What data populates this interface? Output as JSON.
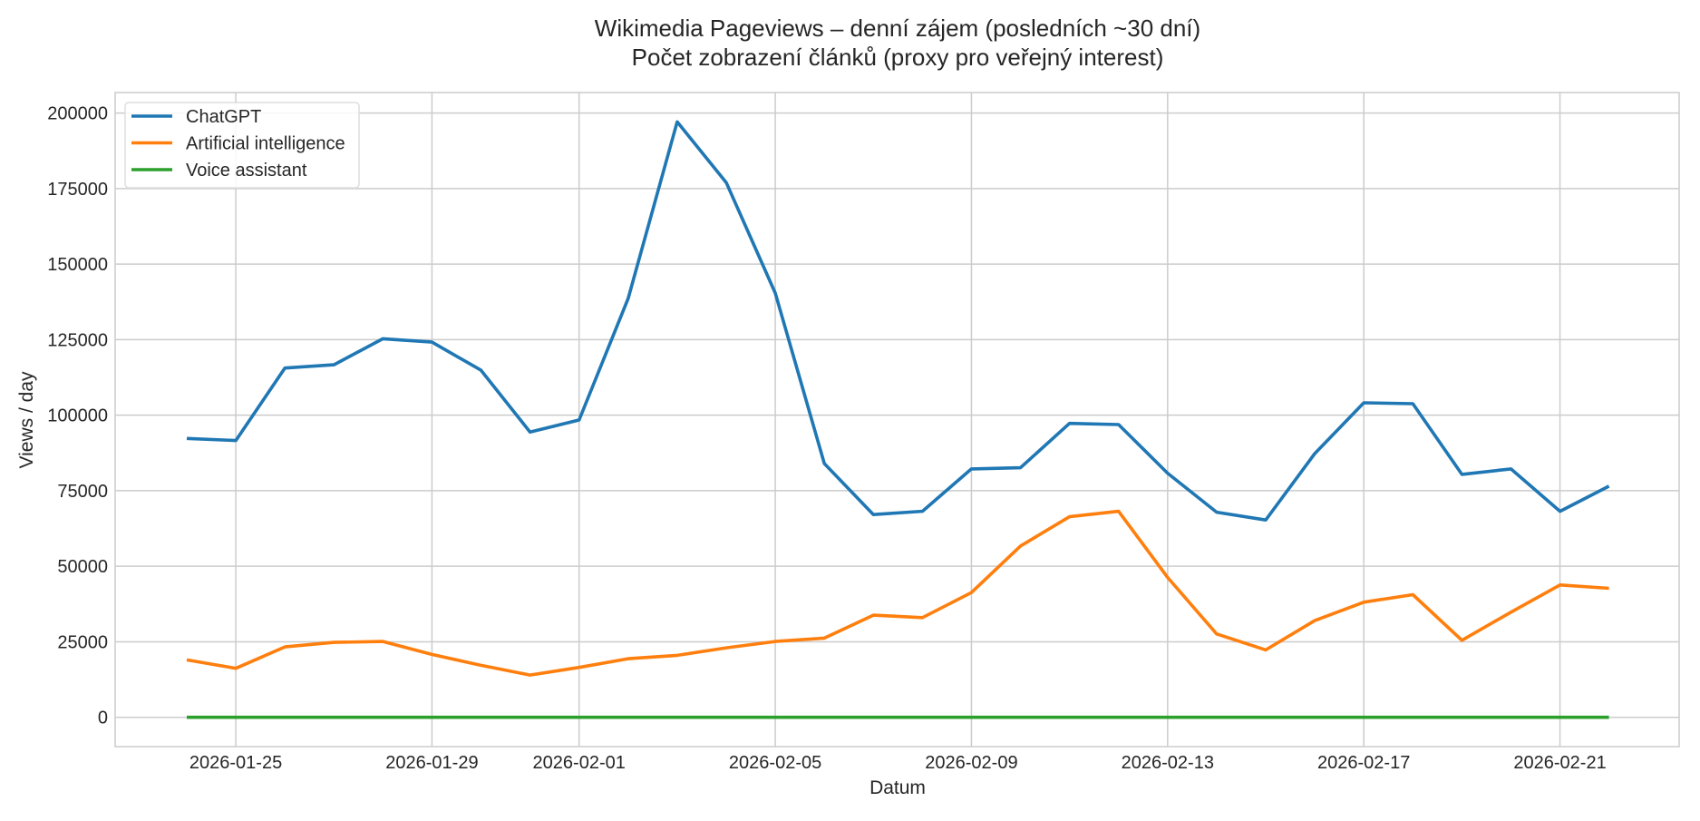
{
  "chart_data": {
    "type": "line",
    "title": "Wikimedia Pageviews – denní zájem (posledních ~30 dní)",
    "subtitle": "Počet zobrazení článků (proxy pro veřejný interest)",
    "xlabel": "Datum",
    "ylabel": "Views / day",
    "x": [
      "2026-01-24",
      "2026-01-25",
      "2026-01-26",
      "2026-01-27",
      "2026-01-28",
      "2026-01-29",
      "2026-01-30",
      "2026-01-31",
      "2026-02-01",
      "2026-02-02",
      "2026-02-03",
      "2026-02-04",
      "2026-02-05",
      "2026-02-06",
      "2026-02-07",
      "2026-02-08",
      "2026-02-09",
      "2026-02-10",
      "2026-02-11",
      "2026-02-12",
      "2026-02-13",
      "2026-02-14",
      "2026-02-15",
      "2026-02-16",
      "2026-02-17",
      "2026-02-18",
      "2026-02-19",
      "2026-02-20",
      "2026-02-21",
      "2026-02-22"
    ],
    "x_ticks": [
      "2026-01-25",
      "2026-01-29",
      "2026-02-01",
      "2026-02-05",
      "2026-02-09",
      "2026-02-13",
      "2026-02-17",
      "2026-02-21"
    ],
    "y_ticks": [
      0,
      25000,
      50000,
      75000,
      100000,
      125000,
      150000,
      175000,
      200000
    ],
    "xlim": [
      "2026-01-22.5",
      "2026-02-23.4"
    ],
    "ylim": [
      -9700,
      206800
    ],
    "grid": true,
    "legend_position": "top-left",
    "series": [
      {
        "name": "ChatGPT",
        "color": "#1f77b4",
        "values": [
          92300,
          91600,
          115600,
          116700,
          125300,
          124200,
          114900,
          94400,
          98400,
          138600,
          197100,
          177000,
          140400,
          84000,
          67100,
          68200,
          82200,
          82600,
          97300,
          96900,
          80800,
          67900,
          65300,
          87300,
          104100,
          103800,
          80400,
          82200,
          68200,
          76500
        ]
      },
      {
        "name": "Artificial intelligence",
        "color": "#ff7f0e",
        "values": [
          19000,
          16200,
          23300,
          24800,
          25100,
          20800,
          17200,
          14000,
          16500,
          19400,
          20500,
          23000,
          25100,
          26200,
          33800,
          33000,
          41300,
          56700,
          66400,
          68200,
          46300,
          27600,
          22300,
          32000,
          38100,
          40600,
          25500,
          34800,
          43800,
          42700
        ]
      },
      {
        "name": "Voice assistant",
        "color": "#2ca02c",
        "values": [
          0,
          0,
          0,
          0,
          0,
          0,
          0,
          0,
          0,
          0,
          0,
          0,
          0,
          0,
          0,
          0,
          0,
          0,
          0,
          0,
          0,
          0,
          0,
          0,
          0,
          0,
          0,
          0,
          0,
          0
        ]
      }
    ]
  }
}
